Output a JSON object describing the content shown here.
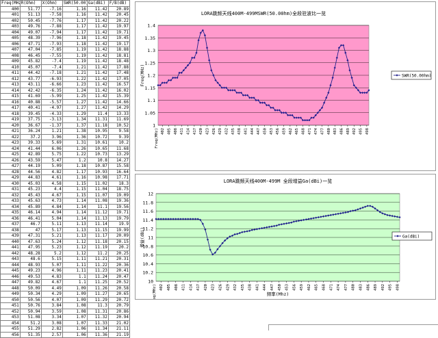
{
  "table": {
    "headers": [
      "Freq(MHz)",
      "R(Ohm)",
      "X(Ohm)",
      "SWR(50.00)",
      "Ga(dBi)",
      "F/B(dB)"
    ],
    "rows": [
      [
        "400",
        "51.77",
        "-7.16",
        "1.16",
        "11.42",
        "20.89"
      ],
      [
        "401",
        "51.13",
        "-7.58",
        "1.16",
        "11.42",
        "20.45"
      ],
      [
        "402",
        "50.45",
        "-7.76",
        "1.17",
        "11.42",
        "20.22"
      ],
      [
        "403",
        "49.76",
        "-7.88",
        "1.17",
        "11.42",
        "19.97"
      ],
      [
        "404",
        "49.07",
        "-7.94",
        "1.17",
        "11.42",
        "19.71"
      ],
      [
        "405",
        "48.39",
        "-7.96",
        "1.18",
        "11.42",
        "19.45"
      ],
      [
        "406",
        "47.71",
        "-7.93",
        "1.18",
        "11.42",
        "19.17"
      ],
      [
        "407",
        "47.04",
        "-7.85",
        "1.19",
        "11.42",
        "18.88"
      ],
      [
        "408",
        "46.45",
        "-7.55",
        "1.19",
        "11.42",
        "18.81"
      ],
      [
        "409",
        "45.82",
        "-7.4",
        "1.19",
        "11.42",
        "18.48"
      ],
      [
        "410",
        "45.07",
        "-7.4",
        "1.21",
        "11.42",
        "17.88"
      ],
      [
        "411",
        "44.42",
        "-7.18",
        "1.21",
        "11.42",
        "17.48"
      ],
      [
        "412",
        "43.77",
        "-6.93",
        "1.22",
        "11.42",
        "17.05"
      ],
      [
        "413",
        "43.11",
        "-6.66",
        "1.23",
        "11.42",
        "16.57"
      ],
      [
        "414",
        "42.42",
        "-6.35",
        "1.24",
        "11.42",
        "16.02"
      ],
      [
        "415",
        "41.69",
        "-5.99",
        "1.25",
        "11.42",
        "15.39"
      ],
      [
        "416",
        "40.88",
        "-5.57",
        "1.27",
        "11.42",
        "14.66"
      ],
      [
        "417",
        "40.41",
        "-4.97",
        "1.27",
        "11.42",
        "14.29"
      ],
      [
        "418",
        "39.45",
        "-4.33",
        "1.29",
        "11.4",
        "13.33"
      ],
      [
        "419",
        "37.75",
        "-3.13",
        "1.34",
        "11.31",
        "11.69"
      ],
      [
        "420",
        "36.67",
        "-1.37",
        "1.37",
        "11.18",
        "10.52"
      ],
      [
        "421",
        "36.24",
        "1.21",
        "1.38",
        "10.95",
        "9.58"
      ],
      [
        "422",
        "37.2",
        "3.96",
        "1.36",
        "10.72",
        "9.39"
      ],
      [
        "423",
        "39.33",
        "5.69",
        "1.31",
        "10.61",
        "10.2"
      ],
      [
        "424",
        "41.44",
        "6.06",
        "1.26",
        "10.65",
        "11.68"
      ],
      [
        "425",
        "42.89",
        "5.75",
        "1.22",
        "10.73",
        "13.29"
      ],
      [
        "426",
        "43.59",
        "5.47",
        "1.2",
        "10.8",
        "14.27"
      ],
      [
        "427",
        "44.19",
        "5.09",
        "1.18",
        "10.87",
        "15.58"
      ],
      [
        "428",
        "44.56",
        "4.82",
        "1.17",
        "10.93",
        "16.64"
      ],
      [
        "429",
        "44.83",
        "4.61",
        "1.16",
        "10.98",
        "17.71"
      ],
      [
        "430",
        "45.03",
        "4.58",
        "1.15",
        "11.02",
        "18.3"
      ],
      [
        "431",
        "45.23",
        "4.4",
        "1.15",
        "11.04",
        "18.75"
      ],
      [
        "432",
        "45.43",
        "4.67",
        "1.15",
        "11.07",
        "19.09"
      ],
      [
        "433",
        "45.63",
        "4.73",
        "1.14",
        "11.08",
        "19.36"
      ],
      [
        "434",
        "45.89",
        "4.84",
        "1.14",
        "11.1",
        "19.56"
      ],
      [
        "435",
        "46.14",
        "4.94",
        "1.14",
        "11.12",
        "19.71"
      ],
      [
        "436",
        "46.41",
        "5.04",
        "1.14",
        "11.13",
        "19.79"
      ],
      [
        "437",
        "46.7",
        "5.11",
        "1.13",
        "11.14",
        "19.9"
      ],
      [
        "438",
        "47",
        "5.17",
        "1.13",
        "11.15",
        "19.99"
      ],
      [
        "439",
        "47.31",
        "5.21",
        "1.13",
        "11.17",
        "20.09"
      ],
      [
        "440",
        "47.63",
        "5.24",
        "1.12",
        "11.18",
        "20.15"
      ],
      [
        "441",
        "47.95",
        "5.23",
        "1.12",
        "11.19",
        "20.2"
      ],
      [
        "442",
        "48.28",
        "5.2",
        "1.12",
        "11.2",
        "20.25"
      ],
      [
        "443",
        "48.6",
        "5.15",
        "1.11",
        "11.21",
        "20.31"
      ],
      [
        "444",
        "48.93",
        "5.07",
        "1.11",
        "11.22",
        "20.36"
      ],
      [
        "445",
        "49.23",
        "4.96",
        "1.11",
        "11.23",
        "20.41"
      ],
      [
        "446",
        "49.53",
        "4.83",
        "1.1",
        "11.24",
        "20.47"
      ],
      [
        "447",
        "49.82",
        "4.67",
        "1.1",
        "11.25",
        "20.52"
      ],
      [
        "448",
        "50.09",
        "4.49",
        "1.09",
        "11.26",
        "20.58"
      ],
      [
        "449",
        "50.34",
        "4.29",
        "1.09",
        "11.27",
        "20.65"
      ],
      [
        "450",
        "50.56",
        "4.07",
        "1.09",
        "11.29",
        "20.72"
      ],
      [
        "451",
        "50.76",
        "3.84",
        "1.08",
        "11.3",
        "20.79"
      ],
      [
        "452",
        "50.94",
        "3.59",
        "1.08",
        "11.31",
        "20.86"
      ],
      [
        "453",
        "51.08",
        "3.34",
        "1.07",
        "11.32",
        "20.94"
      ],
      [
        "454",
        "51.2",
        "3.08",
        "1.07",
        "11.33",
        "21.02"
      ],
      [
        "455",
        "51.29",
        "2.82",
        "1.06",
        "11.34",
        "21.11"
      ],
      [
        "456",
        "51.35",
        "2.57",
        "1.06",
        "11.36",
        "21.19"
      ]
    ]
  },
  "chart_data": [
    {
      "type": "line",
      "title": "LORA跳频天线400M-499MSWR(50.00hm)全段驻波比一览",
      "xlabel": "",
      "ylabel": "Freq(MHz)",
      "xtick_prefix": "Freq(MHz)",
      "x": [
        400,
        401,
        402,
        403,
        404,
        405,
        406,
        407,
        408,
        409,
        410,
        411,
        412,
        413,
        414,
        415,
        416,
        417,
        418,
        419,
        420,
        421,
        422,
        423,
        424,
        425,
        426,
        427,
        428,
        429,
        430,
        431,
        432,
        433,
        434,
        435,
        436,
        437,
        438,
        439,
        440,
        441,
        442,
        443,
        444,
        445,
        446,
        447,
        448,
        449,
        450,
        451,
        452,
        453,
        454,
        455,
        456,
        457,
        458,
        459,
        460,
        461,
        462,
        463,
        464,
        465,
        466,
        467,
        468,
        469,
        470,
        471,
        472,
        473,
        474,
        475,
        476,
        477,
        478,
        479,
        480,
        481,
        482,
        483,
        484,
        485,
        486,
        487,
        488,
        489,
        490,
        491,
        492,
        493,
        494,
        495,
        496,
        497,
        498,
        499
      ],
      "xticks": [
        402,
        405,
        408,
        411,
        414,
        417,
        420,
        423,
        426,
        429,
        432,
        435,
        438,
        441,
        444,
        447,
        450,
        453,
        456,
        459,
        462,
        465,
        468,
        471,
        474,
        477,
        480,
        483,
        486,
        489,
        492,
        495,
        498
      ],
      "ylim": [
        1.0,
        1.4
      ],
      "yticks": [
        1,
        1.05,
        1.1,
        1.15,
        1.2,
        1.25,
        1.3,
        1.35,
        1.4
      ],
      "grid": true,
      "legend": "right",
      "series": [
        {
          "name": "SWR(50.00hm)",
          "values": [
            1.16,
            1.16,
            1.17,
            1.17,
            1.17,
            1.18,
            1.18,
            1.19,
            1.19,
            1.19,
            1.21,
            1.21,
            1.22,
            1.23,
            1.24,
            1.25,
            1.27,
            1.27,
            1.29,
            1.34,
            1.37,
            1.38,
            1.36,
            1.31,
            1.26,
            1.22,
            1.2,
            1.18,
            1.17,
            1.16,
            1.15,
            1.15,
            1.15,
            1.14,
            1.14,
            1.14,
            1.14,
            1.13,
            1.13,
            1.13,
            1.12,
            1.12,
            1.12,
            1.11,
            1.11,
            1.11,
            1.1,
            1.1,
            1.09,
            1.09,
            1.09,
            1.08,
            1.08,
            1.07,
            1.07,
            1.06,
            1.06,
            1.06,
            1.05,
            1.05,
            1.05,
            1.04,
            1.04,
            1.04,
            1.03,
            1.03,
            1.03,
            1.03,
            1.02,
            1.02,
            1.02,
            1.02,
            1.03,
            1.03,
            1.04,
            1.05,
            1.06,
            1.07,
            1.09,
            1.11,
            1.13,
            1.16,
            1.19,
            1.23,
            1.27,
            1.31,
            1.32,
            1.32,
            1.29,
            1.26,
            1.22,
            1.19,
            1.16,
            1.15,
            1.14,
            1.13,
            1.13,
            1.13,
            1.13,
            1.14
          ]
        }
      ]
    },
    {
      "type": "line",
      "title": "LORA跳频天线400M-499M 全段增益Ga(dBi)一览",
      "xlabel": "频率(Mhz)",
      "ylabel": "增益(dBi)",
      "xtick_prefix": "Freq(MHz)",
      "x": [
        400,
        401,
        402,
        403,
        404,
        405,
        406,
        407,
        408,
        409,
        410,
        411,
        412,
        413,
        414,
        415,
        416,
        417,
        418,
        419,
        420,
        421,
        422,
        423,
        424,
        425,
        426,
        427,
        428,
        429,
        430,
        431,
        432,
        433,
        434,
        435,
        436,
        437,
        438,
        439,
        440,
        441,
        442,
        443,
        444,
        445,
        446,
        447,
        448,
        449,
        450,
        451,
        452,
        453,
        454,
        455,
        456,
        457,
        458,
        459,
        460,
        461,
        462,
        463,
        464,
        465,
        466,
        467,
        468,
        469,
        470,
        471,
        472,
        473,
        474,
        475,
        476,
        477,
        478,
        479,
        480,
        481,
        482,
        483,
        484,
        485,
        486,
        487,
        488,
        489,
        490,
        491,
        492,
        493,
        494,
        495,
        496,
        497,
        498,
        499
      ],
      "xticks": [
        402,
        405,
        408,
        411,
        414,
        417,
        420,
        423,
        426,
        429,
        432,
        435,
        438,
        441,
        444,
        447,
        450,
        453,
        456,
        459,
        462,
        465,
        468,
        471,
        474,
        477,
        480,
        483,
        486,
        489,
        492,
        495,
        498
      ],
      "ylim": [
        10.0,
        12.0
      ],
      "yticks": [
        10,
        10.2,
        10.4,
        10.6,
        10.8,
        11,
        11.2,
        11.4,
        11.6,
        11.8,
        12
      ],
      "grid": true,
      "legend": "right",
      "series": [
        {
          "name": "Ga(dBi)",
          "values": [
            11.42,
            11.42,
            11.42,
            11.42,
            11.42,
            11.42,
            11.42,
            11.42,
            11.42,
            11.42,
            11.42,
            11.42,
            11.42,
            11.42,
            11.42,
            11.42,
            11.42,
            11.42,
            11.4,
            11.31,
            11.18,
            10.95,
            10.72,
            10.61,
            10.65,
            10.73,
            10.8,
            10.87,
            10.93,
            10.98,
            11.02,
            11.04,
            11.07,
            11.08,
            11.1,
            11.12,
            11.13,
            11.14,
            11.15,
            11.17,
            11.18,
            11.19,
            11.2,
            11.21,
            11.22,
            11.23,
            11.24,
            11.25,
            11.26,
            11.27,
            11.29,
            11.3,
            11.31,
            11.32,
            11.33,
            11.34,
            11.36,
            11.37,
            11.38,
            11.39,
            11.4,
            11.41,
            11.42,
            11.43,
            11.44,
            11.45,
            11.46,
            11.47,
            11.48,
            11.49,
            11.5,
            11.51,
            11.52,
            11.53,
            11.54,
            11.55,
            11.56,
            11.57,
            11.58,
            11.6,
            11.61,
            11.62,
            11.64,
            11.66,
            11.68,
            11.7,
            11.72,
            11.72,
            11.7,
            11.66,
            11.62,
            11.58,
            11.55,
            11.53,
            11.51,
            11.5,
            11.49,
            11.48,
            11.47,
            11.46
          ]
        }
      ]
    }
  ]
}
